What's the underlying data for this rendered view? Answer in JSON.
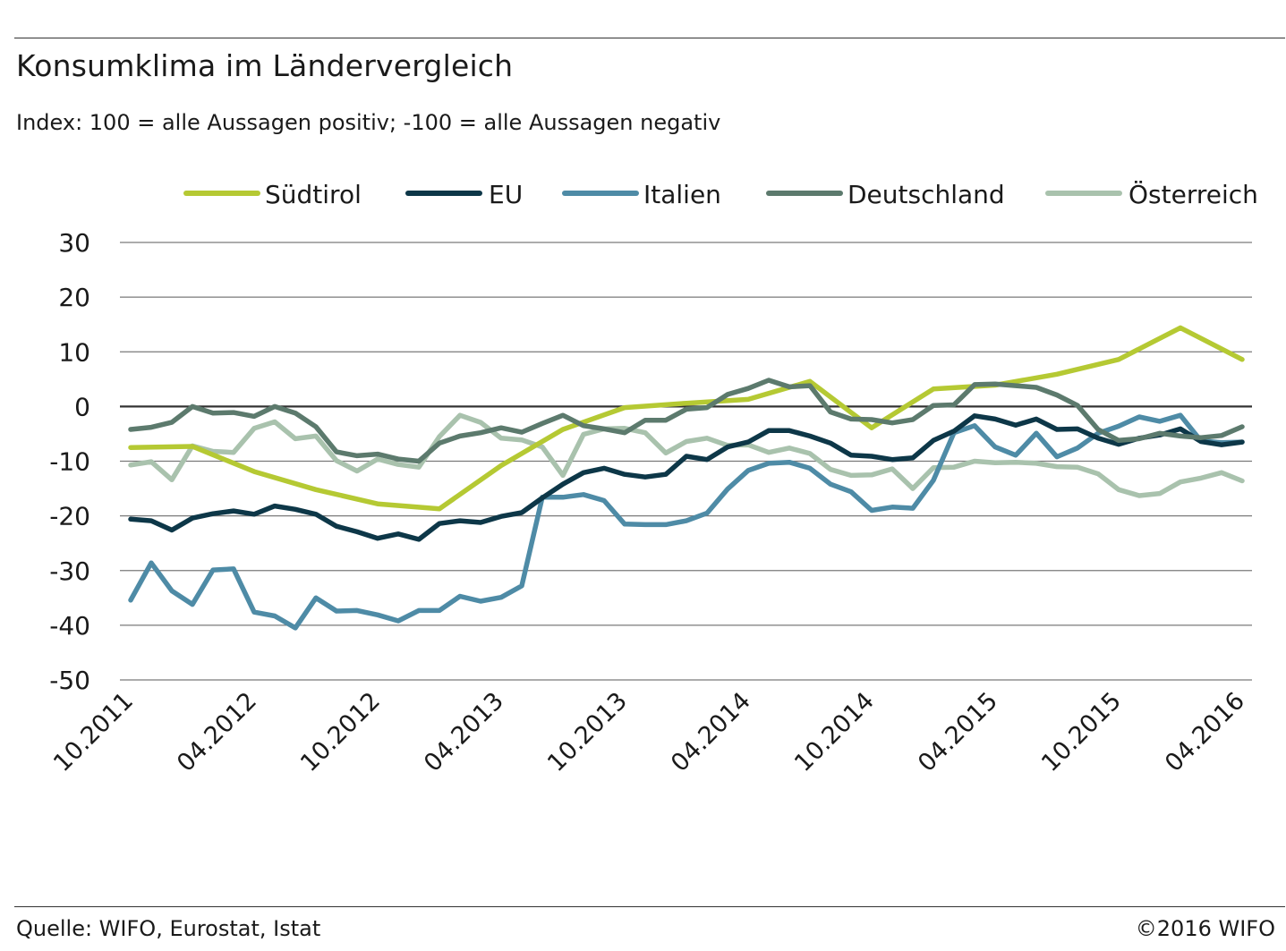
{
  "title": "Konsumklima im Ländervergleich",
  "subtitle": "Index: 100 = alle Aussagen positiv; -100 =  alle Aussagen negativ",
  "footer": {
    "source": "Quelle: WIFO, Eurostat, Istat",
    "copyright": "©2016 WIFO"
  },
  "chart_data": {
    "type": "line",
    "ylim": [
      -50,
      30
    ],
    "yticks": [
      30,
      20,
      10,
      0,
      -10,
      -20,
      -30,
      -40,
      -50
    ],
    "x_tick_labels": [
      "10.2011",
      "04.2012",
      "10.2012",
      "04.2013",
      "10.2013",
      "04.2014",
      "10.2014",
      "04.2015",
      "10.2015",
      "04.2016"
    ],
    "x_tick_months": [
      0,
      6,
      12,
      18,
      24,
      30,
      36,
      42,
      48,
      54
    ],
    "x_months_total": 54,
    "grid": true,
    "legend_position": "top",
    "series": [
      {
        "name": "Südtirol",
        "color": "#b5c933",
        "months": [
          0,
          3,
          6,
          9,
          12,
          15,
          18,
          21,
          24,
          27,
          30,
          33,
          35,
          36,
          39,
          42,
          45,
          48,
          51,
          54
        ],
        "values": [
          -7.5,
          -7.3,
          -11.9,
          -15.2,
          -17.8,
          -18.7,
          -10.8,
          -4.2,
          -0.2,
          0.6,
          1.3,
          4.6,
          -1.1,
          -3.9,
          3.2,
          3.9,
          5.9,
          8.6,
          14.4,
          8.6
        ]
      },
      {
        "name": "EU",
        "color": "#0d3748",
        "months": [
          0,
          1,
          2,
          3,
          4,
          5,
          6,
          7,
          8,
          9,
          10,
          11,
          12,
          13,
          14,
          15,
          16,
          17,
          18,
          19,
          20,
          21,
          22,
          23,
          24,
          25,
          26,
          27,
          28,
          29,
          30,
          31,
          32,
          33,
          34,
          35,
          36,
          37,
          38,
          39,
          40,
          41,
          42,
          43,
          44,
          45,
          46,
          47,
          48,
          49,
          50,
          51,
          52,
          53,
          54
        ],
        "values": [
          -20.6,
          -20.9,
          -22.6,
          -20.4,
          -19.6,
          -19.1,
          -19.7,
          -18.2,
          -18.8,
          -19.7,
          -21.9,
          -22.9,
          -24.1,
          -23.3,
          -24.3,
          -21.4,
          -20.9,
          -21.2,
          -20.1,
          -19.4,
          -16.7,
          -14.2,
          -12.1,
          -11.3,
          -12.4,
          -12.9,
          -12.4,
          -9.1,
          -9.7,
          -7.4,
          -6.5,
          -4.4,
          -4.4,
          -5.4,
          -6.7,
          -8.9,
          -9.1,
          -9.7,
          -9.4,
          -6.2,
          -4.5,
          -1.7,
          -2.3,
          -3.4,
          -2.3,
          -4.2,
          -4.1,
          -5.8,
          -6.9,
          -5.8,
          -5.2,
          -4.1,
          -6.4,
          -7.0,
          -6.5
        ]
      },
      {
        "name": "Italien",
        "color": "#4e8ba6",
        "months": [
          0,
          1,
          2,
          3,
          4,
          5,
          6,
          7,
          8,
          9,
          10,
          11,
          12,
          13,
          14,
          15,
          16,
          17,
          18,
          19,
          20,
          21,
          22,
          23,
          24,
          25,
          26,
          27,
          28,
          29,
          30,
          31,
          32,
          33,
          34,
          35,
          36,
          37,
          38,
          39,
          40,
          41,
          42,
          43,
          44,
          45,
          46,
          47,
          48,
          49,
          50,
          51,
          52,
          53,
          54
        ],
        "values": [
          -35.4,
          -28.6,
          -33.7,
          -36.2,
          -29.9,
          -29.7,
          -37.6,
          -38.3,
          -40.5,
          -35.0,
          -37.4,
          -37.3,
          -38.1,
          -39.2,
          -37.3,
          -37.3,
          -34.7,
          -35.6,
          -34.9,
          -32.8,
          -16.6,
          -16.6,
          -16.1,
          -17.2,
          -21.5,
          -21.6,
          -21.6,
          -20.9,
          -19.5,
          -15.1,
          -11.7,
          -10.4,
          -10.2,
          -11.3,
          -14.2,
          -15.6,
          -19.0,
          -18.4,
          -18.6,
          -13.5,
          -4.8,
          -3.5,
          -7.4,
          -8.9,
          -4.9,
          -9.2,
          -7.6,
          -4.9,
          -3.6,
          -1.9,
          -2.7,
          -1.6,
          -6.3,
          -6.6,
          -6.5
        ]
      },
      {
        "name": "Deutschland",
        "color": "#5c7a6d",
        "months": [
          0,
          1,
          2,
          3,
          4,
          5,
          6,
          7,
          8,
          9,
          10,
          11,
          12,
          13,
          14,
          15,
          16,
          17,
          18,
          19,
          20,
          21,
          22,
          23,
          24,
          25,
          26,
          27,
          28,
          29,
          30,
          31,
          32,
          33,
          34,
          35,
          36,
          37,
          38,
          39,
          40,
          41,
          42,
          43,
          44,
          45,
          46,
          47,
          48,
          49,
          50,
          51,
          52,
          53,
          54
        ],
        "values": [
          -4.2,
          -3.8,
          -2.9,
          0.0,
          -1.2,
          -1.1,
          -1.8,
          0.0,
          -1.2,
          -3.7,
          -8.3,
          -9.0,
          -8.7,
          -9.6,
          -10.0,
          -6.7,
          -5.4,
          -4.8,
          -3.9,
          -4.7,
          -3.1,
          -1.6,
          -3.5,
          -4.1,
          -4.8,
          -2.5,
          -2.5,
          -0.5,
          -0.2,
          2.2,
          3.3,
          4.8,
          3.6,
          3.8,
          -1.0,
          -2.3,
          -2.4,
          -3.0,
          -2.4,
          0.2,
          0.3,
          4.0,
          4.1,
          3.8,
          3.5,
          2.1,
          0.2,
          -4.2,
          -6.2,
          -5.9,
          -4.9,
          -5.4,
          -5.7,
          -5.3,
          -3.7
        ]
      },
      {
        "name": "Österreich",
        "color": "#a9c2ad",
        "months": [
          0,
          1,
          2,
          3,
          4,
          5,
          6,
          7,
          8,
          9,
          10,
          11,
          12,
          13,
          14,
          15,
          16,
          17,
          18,
          19,
          20,
          21,
          22,
          23,
          24,
          25,
          26,
          27,
          28,
          29,
          30,
          31,
          32,
          33,
          34,
          35,
          36,
          37,
          38,
          39,
          40,
          41,
          42,
          43,
          44,
          45,
          46,
          47,
          48,
          49,
          50,
          51,
          52,
          53,
          54
        ],
        "values": [
          -10.7,
          -10.1,
          -13.4,
          -7.2,
          -8.2,
          -8.4,
          -4.0,
          -2.8,
          -5.9,
          -5.4,
          -9.9,
          -11.8,
          -9.6,
          -10.6,
          -11.1,
          -5.5,
          -1.6,
          -2.9,
          -5.8,
          -6.1,
          -7.4,
          -12.6,
          -5.1,
          -4.1,
          -4.0,
          -4.8,
          -8.5,
          -6.4,
          -5.8,
          -7.1,
          -7.0,
          -8.4,
          -7.6,
          -8.6,
          -11.5,
          -12.6,
          -12.5,
          -11.4,
          -15.0,
          -11.2,
          -11.1,
          -10.0,
          -10.3,
          -10.2,
          -10.4,
          -11.0,
          -11.1,
          -12.3,
          -15.2,
          -16.3,
          -15.9,
          -13.8,
          -13.1,
          -12.1,
          -13.6
        ]
      }
    ]
  }
}
